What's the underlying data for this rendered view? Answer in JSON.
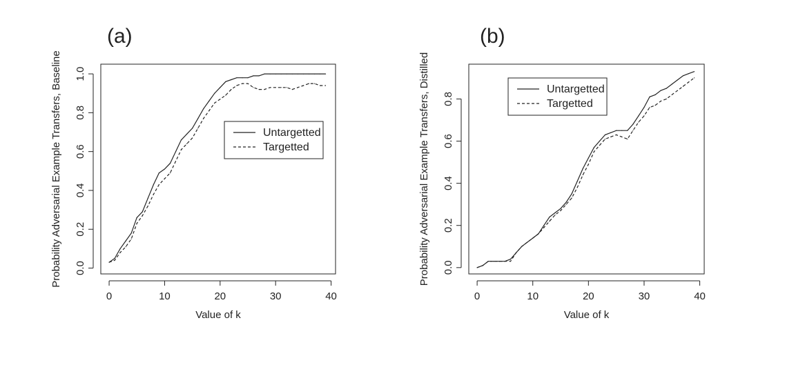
{
  "chart_data": [
    {
      "panel": "(a)",
      "type": "line",
      "xlabel": "Value of k",
      "ylabel": "Probability Adversarial Example Transfers, Baseline",
      "xlim": [
        0,
        40
      ],
      "ylim": [
        0,
        1.0
      ],
      "xticks": [
        "0",
        "10",
        "20",
        "30",
        "40"
      ],
      "yticks": [
        "0.0",
        "0.2",
        "0.4",
        "0.6",
        "0.8",
        "1.0"
      ],
      "grid": false,
      "legend_position": "center-right",
      "series": [
        {
          "name": "Untargetted",
          "style": "solid",
          "x": [
            0,
            1,
            2,
            3,
            4,
            5,
            6,
            7,
            8,
            9,
            10,
            11,
            12,
            13,
            14,
            15,
            16,
            17,
            18,
            19,
            20,
            21,
            22,
            23,
            24,
            25,
            26,
            27,
            28,
            29,
            30,
            31,
            32,
            33,
            34,
            35,
            36,
            37,
            38,
            39
          ],
          "y": [
            0.03,
            0.05,
            0.1,
            0.14,
            0.18,
            0.26,
            0.29,
            0.36,
            0.43,
            0.49,
            0.51,
            0.54,
            0.6,
            0.66,
            0.69,
            0.72,
            0.77,
            0.82,
            0.86,
            0.9,
            0.93,
            0.96,
            0.97,
            0.98,
            0.98,
            0.98,
            0.99,
            0.99,
            1.0,
            1.0,
            1.0,
            1.0,
            1.0,
            1.0,
            1.0,
            1.0,
            1.0,
            1.0,
            1.0,
            1.0
          ]
        },
        {
          "name": "Targetted",
          "style": "dashed",
          "x": [
            0,
            1,
            2,
            3,
            4,
            5,
            6,
            7,
            8,
            9,
            10,
            11,
            12,
            13,
            14,
            15,
            16,
            17,
            18,
            19,
            20,
            21,
            22,
            23,
            24,
            25,
            26,
            27,
            28,
            29,
            30,
            31,
            32,
            33,
            34,
            35,
            36,
            37,
            38,
            39
          ],
          "y": [
            0.03,
            0.04,
            0.08,
            0.11,
            0.15,
            0.23,
            0.27,
            0.32,
            0.38,
            0.43,
            0.46,
            0.49,
            0.55,
            0.61,
            0.64,
            0.67,
            0.72,
            0.77,
            0.81,
            0.85,
            0.87,
            0.89,
            0.92,
            0.94,
            0.95,
            0.95,
            0.93,
            0.92,
            0.92,
            0.93,
            0.93,
            0.93,
            0.93,
            0.92,
            0.93,
            0.94,
            0.95,
            0.95,
            0.94,
            0.94
          ]
        }
      ]
    },
    {
      "panel": "(b)",
      "type": "line",
      "xlabel": "Value of k",
      "ylabel": "Probability Adversarial Example Transfers, Distilled",
      "xlim": [
        0,
        40
      ],
      "ylim": [
        0,
        0.93
      ],
      "xticks": [
        "0",
        "10",
        "20",
        "30",
        "40"
      ],
      "yticks": [
        "0.0",
        "0.2",
        "0.4",
        "0.6",
        "0.8"
      ],
      "grid": false,
      "legend_position": "top-left",
      "series": [
        {
          "name": "Untargetted",
          "style": "solid",
          "x": [
            0,
            1,
            2,
            3,
            4,
            5,
            6,
            7,
            8,
            9,
            10,
            11,
            12,
            13,
            14,
            15,
            16,
            17,
            18,
            19,
            20,
            21,
            22,
            23,
            24,
            25,
            26,
            27,
            28,
            29,
            30,
            31,
            32,
            33,
            34,
            35,
            36,
            37,
            38,
            39
          ],
          "y": [
            0.0,
            0.01,
            0.03,
            0.03,
            0.03,
            0.03,
            0.04,
            0.07,
            0.1,
            0.12,
            0.14,
            0.16,
            0.2,
            0.24,
            0.26,
            0.28,
            0.31,
            0.35,
            0.41,
            0.47,
            0.52,
            0.57,
            0.6,
            0.63,
            0.64,
            0.65,
            0.65,
            0.65,
            0.68,
            0.72,
            0.76,
            0.81,
            0.82,
            0.84,
            0.85,
            0.87,
            0.89,
            0.91,
            0.92,
            0.93
          ]
        },
        {
          "name": "Targetted",
          "style": "dashed",
          "x": [
            0,
            1,
            2,
            3,
            4,
            5,
            6,
            7,
            8,
            9,
            10,
            11,
            12,
            13,
            14,
            15,
            16,
            17,
            18,
            19,
            20,
            21,
            22,
            23,
            24,
            25,
            26,
            27,
            28,
            29,
            30,
            31,
            32,
            33,
            34,
            35,
            36,
            37,
            38,
            39
          ],
          "y": [
            0.0,
            0.01,
            0.03,
            0.03,
            0.03,
            0.03,
            0.03,
            0.07,
            0.1,
            0.12,
            0.14,
            0.16,
            0.19,
            0.22,
            0.25,
            0.27,
            0.3,
            0.33,
            0.38,
            0.44,
            0.49,
            0.55,
            0.58,
            0.61,
            0.62,
            0.63,
            0.62,
            0.61,
            0.65,
            0.69,
            0.72,
            0.76,
            0.77,
            0.79,
            0.8,
            0.82,
            0.84,
            0.86,
            0.88,
            0.9
          ]
        }
      ]
    }
  ]
}
